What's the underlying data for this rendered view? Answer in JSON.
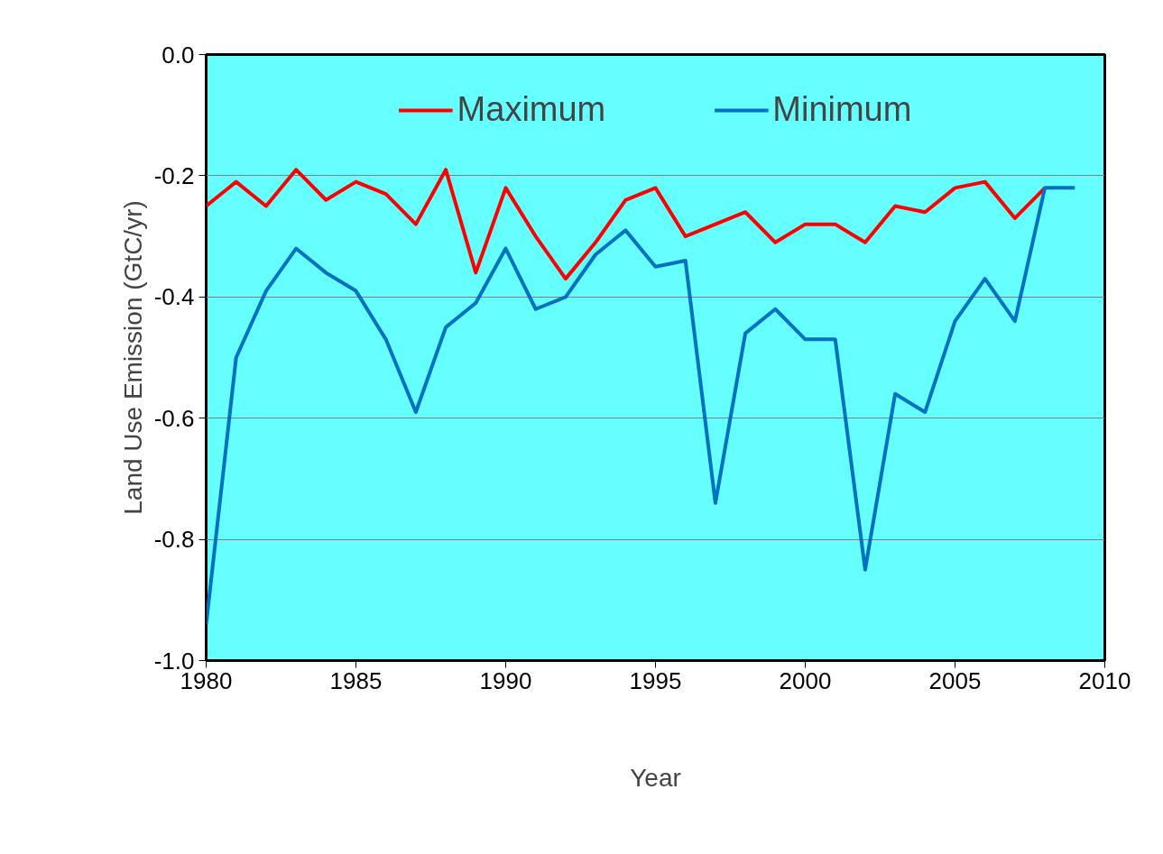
{
  "chart_data": {
    "type": "line",
    "xlabel": "Year",
    "ylabel": "Land Use Emission (GtC/yr)",
    "x": [
      1980,
      1981,
      1982,
      1983,
      1984,
      1985,
      1986,
      1987,
      1988,
      1989,
      1990,
      1991,
      1992,
      1993,
      1994,
      1995,
      1996,
      1997,
      1998,
      1999,
      2000,
      2001,
      2002,
      2003,
      2004,
      2005,
      2006,
      2007,
      2008,
      2009
    ],
    "series": [
      {
        "name": "Maximum",
        "color": "#ff0000",
        "values": [
          -0.25,
          -0.21,
          -0.25,
          -0.19,
          -0.24,
          -0.21,
          -0.23,
          -0.28,
          -0.19,
          -0.36,
          -0.22,
          -0.3,
          -0.37,
          -0.31,
          -0.24,
          -0.22,
          -0.3,
          -0.28,
          -0.26,
          -0.31,
          -0.28,
          -0.28,
          -0.31,
          -0.25,
          -0.26,
          -0.22,
          -0.21,
          -0.27,
          -0.22,
          null
        ]
      },
      {
        "name": "Minimum",
        "color": "#0070c0",
        "values": [
          -0.94,
          -0.5,
          -0.39,
          -0.32,
          -0.36,
          -0.39,
          -0.47,
          -0.59,
          -0.45,
          -0.41,
          -0.32,
          -0.42,
          -0.4,
          -0.33,
          -0.29,
          -0.35,
          -0.34,
          -0.74,
          -0.46,
          -0.42,
          -0.47,
          -0.47,
          -0.85,
          -0.56,
          -0.59,
          -0.44,
          -0.37,
          -0.44,
          -0.22,
          -0.22
        ]
      }
    ],
    "xlim": [
      1980,
      2010
    ],
    "xticks": [
      1980,
      1985,
      1990,
      1995,
      2000,
      2005,
      2010
    ],
    "ylim": [
      -1.0,
      0.0
    ],
    "yticks": [
      {
        "value": -1.0,
        "label": "-1.0"
      },
      {
        "value": -0.8,
        "label": "-0.8"
      },
      {
        "value": -0.6,
        "label": "-0.6"
      },
      {
        "value": -0.4,
        "label": "-0.4"
      },
      {
        "value": -0.2,
        "label": "-0.2"
      },
      {
        "value": 0.0,
        "label": "0.0"
      }
    ],
    "grid": "y",
    "legend": "top",
    "marker": "none",
    "line_style": "solid"
  }
}
